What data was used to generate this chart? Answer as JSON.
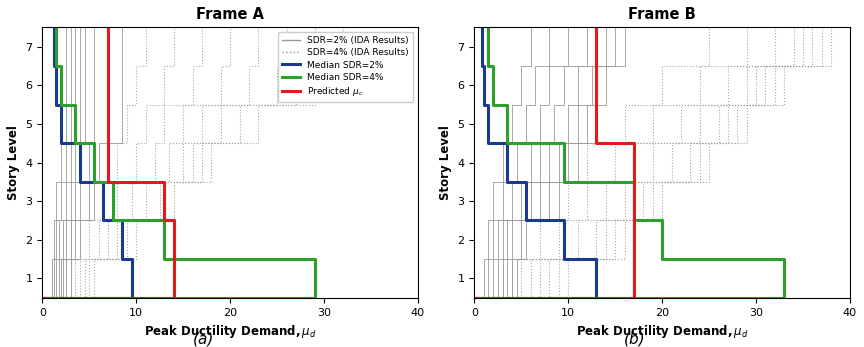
{
  "frame_a": {
    "title": "Frame A",
    "ida_sdr2": [
      [
        1.0,
        1.2,
        1.5,
        1.8,
        2.0,
        2.2,
        2.5,
        3.0
      ],
      [
        1.2,
        1.5,
        1.8,
        2.2,
        2.5,
        3.0,
        3.5,
        4.0
      ],
      [
        1.5,
        2.0,
        2.5,
        3.0,
        3.5,
        4.0,
        5.0,
        5.5
      ],
      [
        2.0,
        2.5,
        3.0,
        3.5,
        4.0,
        5.0,
        6.0,
        7.0
      ],
      [
        2.5,
        3.0,
        3.5,
        4.0,
        4.5,
        5.5,
        7.0,
        8.5
      ],
      [
        2.5,
        3.0,
        3.5,
        4.0,
        4.5,
        5.5,
        7.0,
        8.5
      ],
      [
        2.5,
        3.0,
        3.5,
        4.0,
        4.5,
        5.5,
        7.0,
        8.5
      ]
    ],
    "ida_sdr4": [
      [
        2.0,
        2.5,
        3.0,
        3.5,
        4.0,
        4.5,
        5.0,
        5.5
      ],
      [
        3.0,
        4.0,
        5.0,
        6.0,
        7.0,
        8.0,
        9.0,
        10.0
      ],
      [
        5.0,
        6.5,
        8.0,
        9.5,
        11.0,
        12.5,
        13.0,
        14.0
      ],
      [
        8.0,
        10.0,
        12.0,
        13.5,
        15.0,
        16.0,
        17.0,
        18.0
      ],
      [
        9.0,
        11.0,
        13.0,
        15.0,
        17.0,
        19.0,
        21.0,
        23.0
      ],
      [
        10.0,
        13.0,
        16.0,
        19.0,
        22.0,
        25.0,
        27.0,
        29.0
      ],
      [
        11.0,
        14.0,
        17.0,
        20.0,
        23.0,
        26.0,
        29.0,
        32.0
      ]
    ],
    "median_sdr2": [
      9.5,
      8.5,
      6.5,
      4.0,
      2.0,
      1.5,
      1.2
    ],
    "median_sdr4": [
      29.0,
      13.0,
      7.5,
      5.5,
      3.5,
      2.0,
      1.5
    ],
    "predicted_mu": [
      14.0,
      14.0,
      13.0,
      7.0,
      7.0,
      7.0,
      7.0
    ]
  },
  "frame_b": {
    "title": "Frame B",
    "ida_sdr2": [
      [
        1.0,
        1.5,
        2.0,
        2.5,
        3.0,
        3.5,
        4.0,
        4.5
      ],
      [
        1.5,
        2.0,
        2.5,
        3.0,
        3.5,
        4.0,
        5.0,
        5.5
      ],
      [
        2.0,
        3.0,
        4.0,
        5.0,
        6.0,
        7.0,
        8.0,
        9.0
      ],
      [
        3.0,
        4.5,
        6.0,
        7.0,
        8.0,
        9.0,
        10.0,
        11.0
      ],
      [
        4.0,
        5.5,
        7.0,
        8.5,
        10.0,
        11.0,
        12.0,
        13.0
      ],
      [
        5.0,
        6.5,
        8.0,
        9.5,
        11.0,
        12.5,
        13.0,
        14.0
      ],
      [
        6.0,
        8.0,
        10.0,
        12.0,
        13.0,
        14.0,
        15.0,
        16.0
      ]
    ],
    "ida_sdr4": [
      [
        3.0,
        4.0,
        5.0,
        6.0,
        7.0,
        8.0,
        9.0,
        10.0
      ],
      [
        5.0,
        7.0,
        9.0,
        11.0,
        13.0,
        14.0,
        15.0,
        16.0
      ],
      [
        8.0,
        10.0,
        12.0,
        14.0,
        16.0,
        18.0,
        19.0,
        20.0
      ],
      [
        12.0,
        15.0,
        17.0,
        19.0,
        21.0,
        23.0,
        24.0,
        25.0
      ],
      [
        16.0,
        19.0,
        22.0,
        24.0,
        26.0,
        27.0,
        28.0,
        29.0
      ],
      [
        20.0,
        24.0,
        27.0,
        29.0,
        30.0,
        31.0,
        32.0,
        33.0
      ],
      [
        25.0,
        29.0,
        32.0,
        34.0,
        35.0,
        36.0,
        37.0,
        38.0
      ]
    ],
    "median_sdr2": [
      13.0,
      9.5,
      5.5,
      3.5,
      1.5,
      1.0,
      0.8
    ],
    "median_sdr4": [
      33.0,
      20.0,
      17.0,
      9.5,
      3.5,
      2.0,
      1.5
    ],
    "predicted_mu": [
      17.0,
      17.0,
      17.0,
      17.0,
      13.0,
      13.0,
      13.0
    ]
  },
  "xlim": [
    0,
    40
  ],
  "ylim": [
    0.5,
    7.5
  ],
  "yticks": [
    1,
    2,
    3,
    4,
    5,
    6,
    7
  ],
  "xticks": [
    0,
    10,
    20,
    30,
    40
  ],
  "ylabel": "Story Level",
  "color_gray": "#999999",
  "color_blue": "#1a3a8f",
  "color_green": "#2ca02c",
  "color_red": "#e31a1c",
  "label_panel_a": "(a)",
  "label_panel_b": "(b)"
}
